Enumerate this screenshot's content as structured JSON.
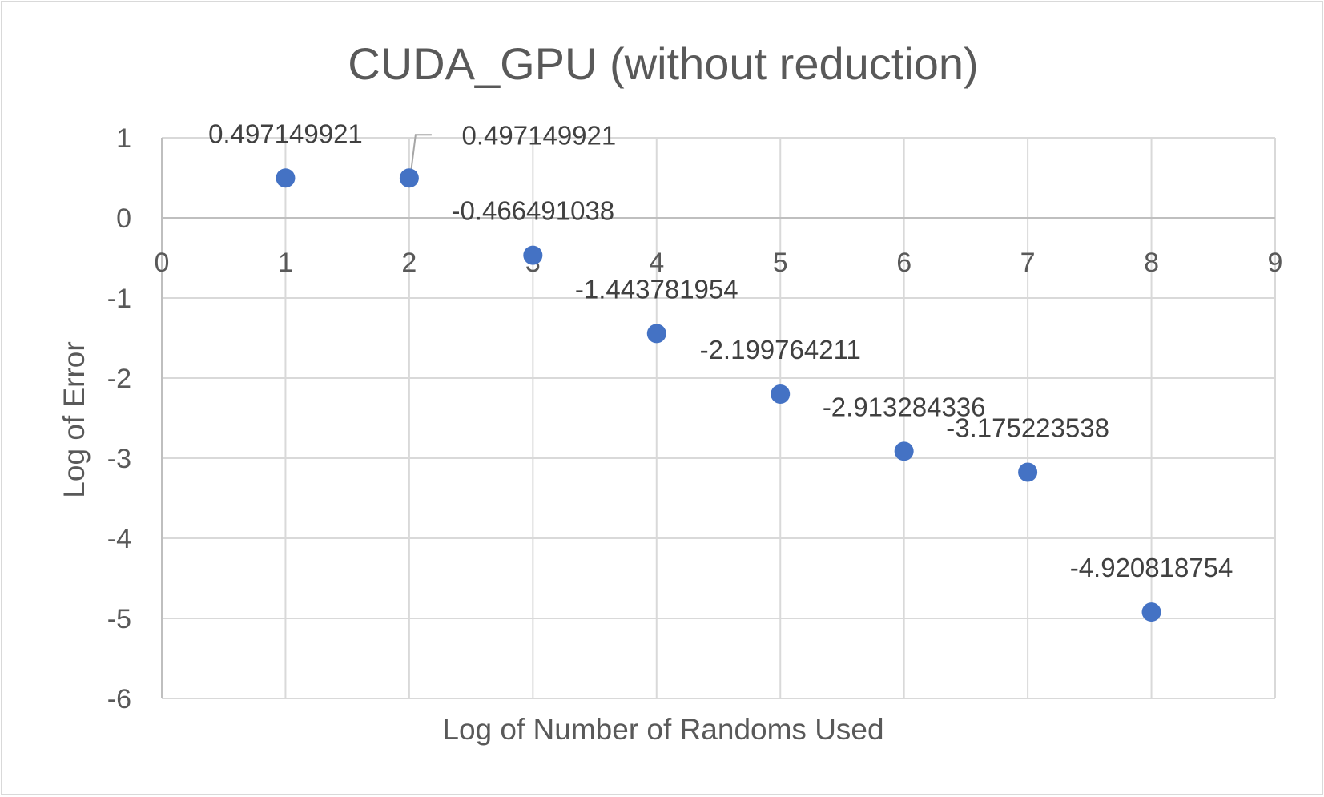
{
  "chart_data": {
    "type": "scatter",
    "title": "CUDA_GPU (without reduction)",
    "xlabel": "Log of Number of Randoms Used",
    "ylabel": "Log of Error",
    "xlim": [
      0,
      9
    ],
    "ylim": [
      -6,
      1
    ],
    "x_ticks": [
      0,
      1,
      2,
      3,
      4,
      5,
      6,
      7,
      8,
      9
    ],
    "y_ticks": [
      1,
      0,
      -1,
      -2,
      -3,
      -4,
      -5,
      -6
    ],
    "grid": true,
    "legend": "none",
    "marker_color": "#4472c4",
    "points": [
      {
        "x": 1,
        "y": 0.497149921,
        "label": "0.497149921"
      },
      {
        "x": 2,
        "y": 0.497149921,
        "label": "0.497149921"
      },
      {
        "x": 3,
        "y": -0.466491038,
        "label": "-0.466491038"
      },
      {
        "x": 4,
        "y": -1.443781954,
        "label": "-1.443781954"
      },
      {
        "x": 5,
        "y": -2.199764211,
        "label": "-2.199764211"
      },
      {
        "x": 6,
        "y": -2.913284336,
        "label": "-2.913284336"
      },
      {
        "x": 7,
        "y": -3.175223538,
        "label": "-3.175223538"
      },
      {
        "x": 8,
        "y": -4.920818754,
        "label": "-4.920818754"
      }
    ]
  }
}
